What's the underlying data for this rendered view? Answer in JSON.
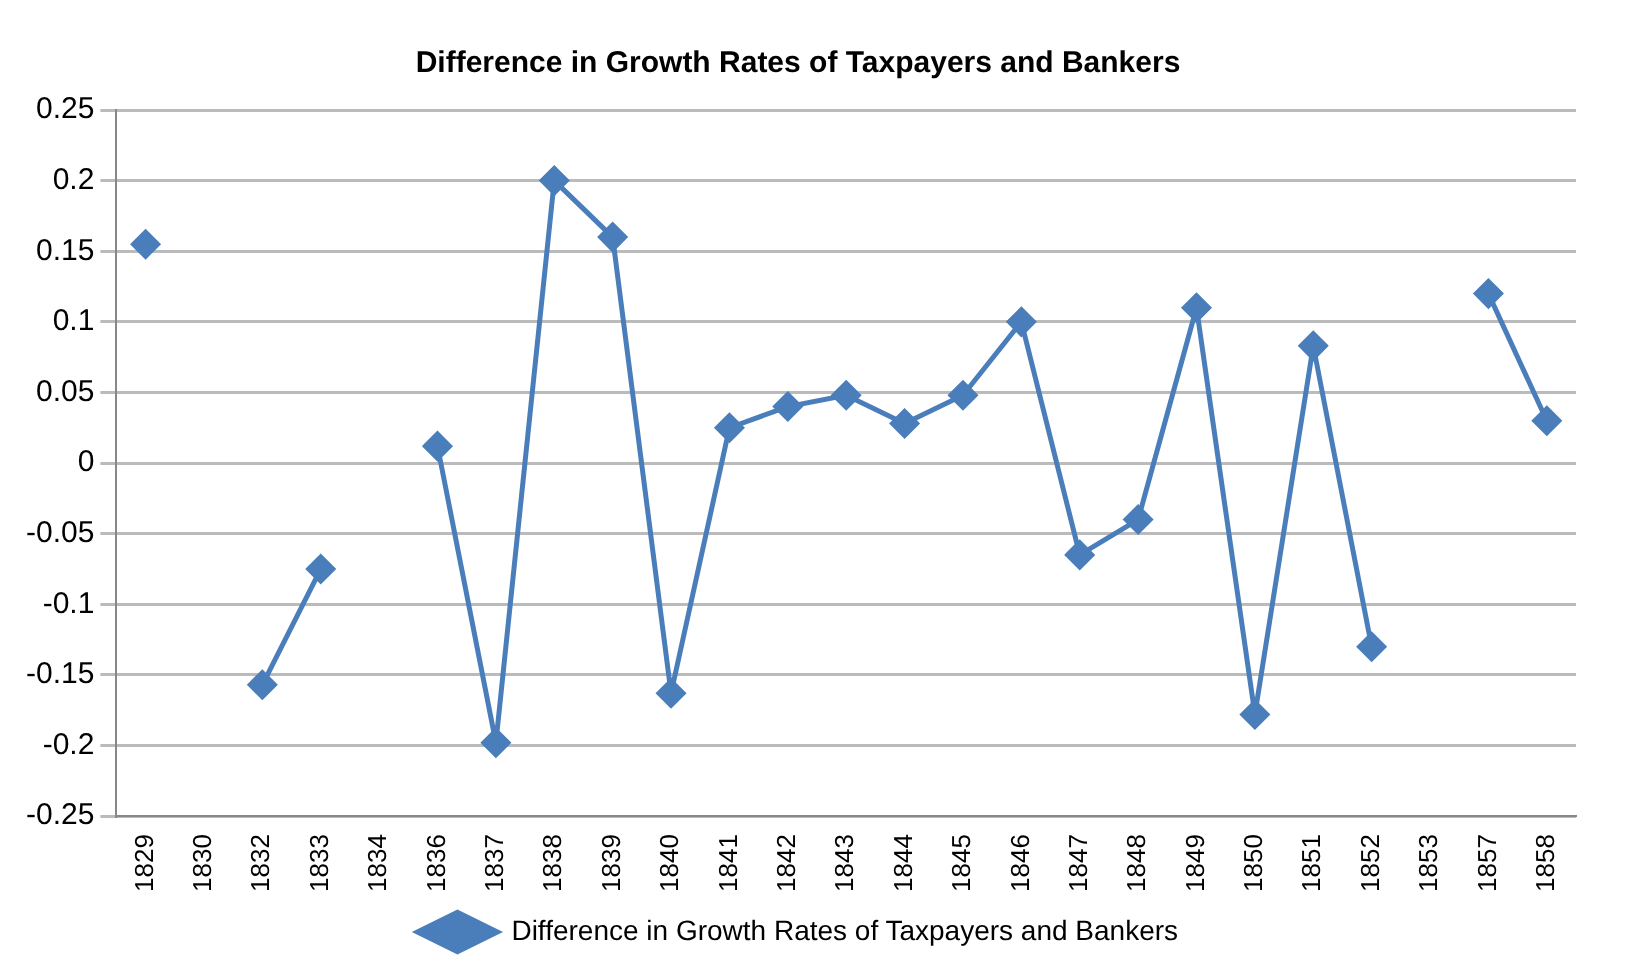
{
  "chart_data": {
    "type": "line",
    "title": "Difference in Growth Rates of Taxpayers and Bankers",
    "categories": [
      "1829",
      "1830",
      "1832",
      "1833",
      "1834",
      "1836",
      "1837",
      "1838",
      "1839",
      "1840",
      "1841",
      "1842",
      "1843",
      "1844",
      "1845",
      "1846",
      "1847",
      "1848",
      "1849",
      "1850",
      "1851",
      "1852",
      "1853",
      "1857",
      "1858"
    ],
    "series": [
      {
        "name": "Difference in Growth Rates of Taxpayers and Bankers",
        "color": "#4a7ebb",
        "values": [
          0.155,
          null,
          -0.157,
          -0.075,
          null,
          0.012,
          -0.198,
          0.2,
          0.16,
          -0.163,
          0.025,
          0.04,
          0.048,
          0.028,
          0.048,
          0.1,
          -0.065,
          -0.04,
          0.11,
          -0.178,
          0.083,
          -0.13,
          null,
          0.12,
          0.03
        ]
      }
    ],
    "ylim": [
      -0.25,
      0.25
    ],
    "yticks": [
      -0.25,
      -0.2,
      -0.15,
      -0.1,
      -0.05,
      0,
      0.05,
      0.1,
      0.15,
      0.2,
      0.25
    ],
    "grid": "y",
    "legend": "bottom",
    "marker": "diamond",
    "line_style": "solid"
  }
}
